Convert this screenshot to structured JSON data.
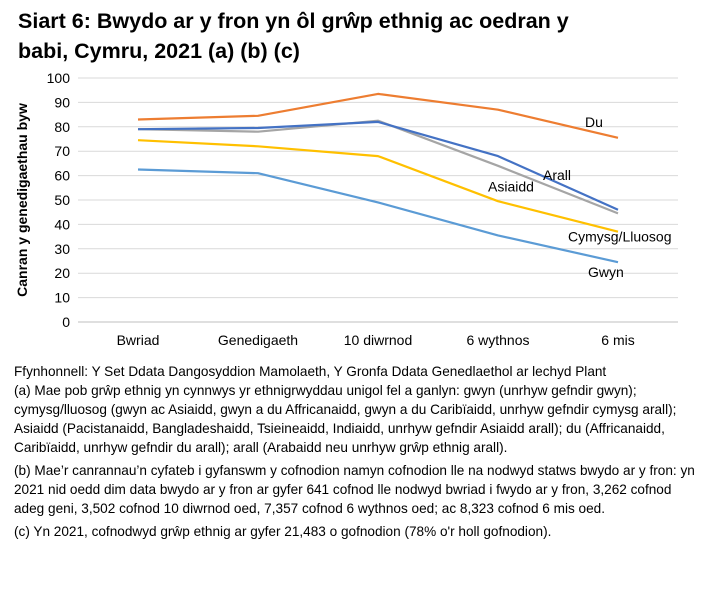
{
  "title_line1": "Siart 6: Bwydo ar y fron yn ôl grŵp ethnig ac oedran y",
  "title_line2": "babi, Cymru, 2021  (a) (b) (c)",
  "chart_data": {
    "type": "line",
    "title": "Siart 6: Bwydo ar y fron yn ôl grŵp ethnig ac oedran y babi, Cymru, 2021  (a) (b) (c)",
    "xlabel": "",
    "ylabel": "Canran y genedigaethau byw",
    "ylim": [
      0,
      100
    ],
    "yticks": [
      0,
      10,
      20,
      30,
      40,
      50,
      60,
      70,
      80,
      90,
      100
    ],
    "categories": [
      "Bwriad",
      "Genedigaeth",
      "10 diwrnod",
      "6 wythnos",
      "6 mis"
    ],
    "grid": true,
    "legend": "direct labels at line ends",
    "series": [
      {
        "name": "Du",
        "color": "#ED7D31",
        "values": [
          83,
          84.5,
          93.5,
          87,
          75.5
        ]
      },
      {
        "name": "Arall",
        "color": "#4472C4",
        "values": [
          79,
          79.5,
          82,
          68,
          46
        ]
      },
      {
        "name": "Asiaidd",
        "color": "#A5A5A5",
        "values": [
          79,
          78,
          82.5,
          64,
          44.5
        ]
      },
      {
        "name": "Cymysg/Lluosog",
        "color": "#FFC000",
        "values": [
          74.5,
          72,
          68,
          49.5,
          37
        ]
      },
      {
        "name": "Gwyn",
        "color": "#5B9BD5",
        "values": [
          62.5,
          61,
          49,
          35.5,
          24.5
        ]
      }
    ]
  },
  "notes": {
    "source": "Ffynhonnell: Y Set Ddata Dangosyddion Mamolaeth, Y Gronfa Ddata Genedlaethol ar lechyd Plant",
    "a": "(a) Mae pob grŵp ethnig yn cynnwys yr ethnigrwyddau unigol fel a ganlyn: gwyn (unrhyw gefndir gwyn); cymysg/lluosog (gwyn ac Asiaidd, gwyn a du Affricanaidd, gwyn a du Caribïaidd, unrhyw gefndir cymysg arall); Asiaidd (Pacistanaidd, Bangladeshaidd, Tsieineaidd, Indiaidd, unrhyw gefndir Asiaidd arall); du (Affricanaidd, Caribïaidd, unrhyw gefndir du arall); arall (Arabaidd neu unrhyw grŵp ethnig arall).",
    "b": "(b) Mae’r canrannau’n cyfateb i gyfanswm y cofnodion namyn cofnodion lle na nodwyd statws bwydo ar y fron: yn 2021 nid oedd dim data bwydo ar y fron ar gyfer 641 cofnod lle nodwyd bwriad i fwydo ar y fron, 3,262 cofnod adeg geni, 3,502 cofnod 10 diwrnod oed, 7,357 cofnod 6 wythnos oed; ac 8,323 cofnod 6 mis oed.",
    "c": "(c) Yn 2021, cofnodwyd grŵp ethnig ar gyfer 21,483 o gofnodion (78% o'r holl gofnodion)."
  }
}
